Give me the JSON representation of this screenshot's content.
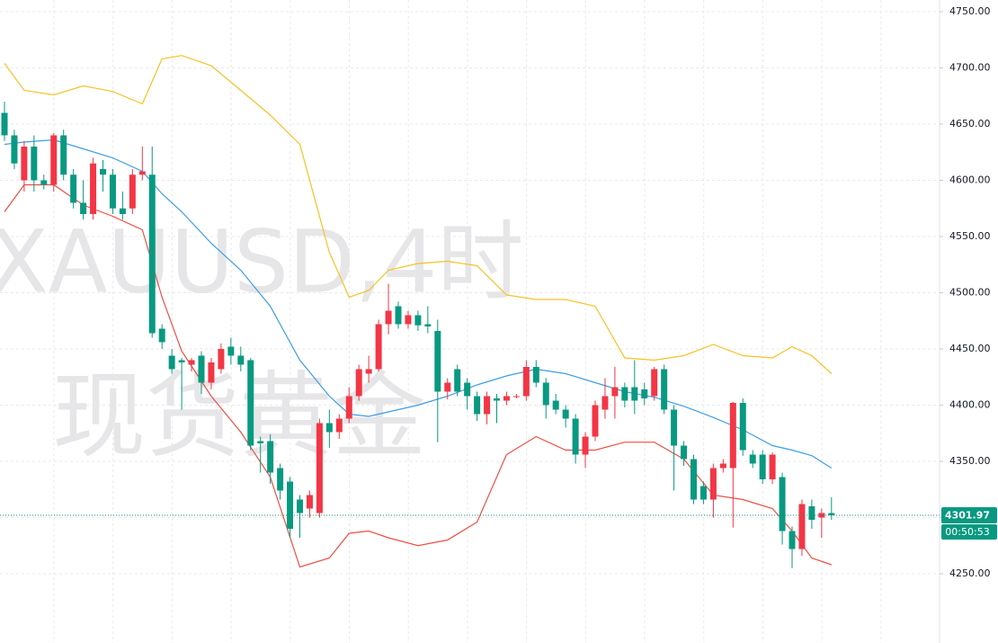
{
  "chart_data": {
    "type": "candlestick",
    "symbol_title": "XAUUSD,4时",
    "symbol_name": "现货黄金",
    "up_color": "#f23645",
    "down_color": "#089981",
    "ylim": [
      4188.4,
      4760.4
    ],
    "yticks": [
      {
        "value": 4250,
        "label": "4250.00"
      },
      {
        "value": 4300,
        "label": "4300.00"
      },
      {
        "value": 4350,
        "label": "4350.00"
      },
      {
        "value": 4400,
        "label": "4400.00"
      },
      {
        "value": 4450,
        "label": "4450.00"
      },
      {
        "value": 4500,
        "label": "4500.00"
      },
      {
        "value": 4550,
        "label": "4550.00"
      },
      {
        "value": 4600,
        "label": "4600.00"
      },
      {
        "value": 4650,
        "label": "4650.00"
      },
      {
        "value": 4700,
        "label": "4700.00"
      },
      {
        "value": 4750,
        "label": "4750.00"
      }
    ],
    "grid": true,
    "open": [
      4660,
      4640,
      4600,
      4630,
      4600,
      4596,
      4640,
      4605,
      4580,
      4570,
      4610,
      4605,
      4575,
      4575,
      4605,
      4605,
      4468,
      4444,
      4440,
      4436,
      4444,
      4420,
      4432,
      4452,
      4444,
      4440,
      4368,
      4368,
      4344,
      4332,
      4316,
      4308,
      4304,
      4384,
      4376,
      4388,
      4408,
      4428,
      4432,
      4472,
      4488,
      4472,
      4480,
      4472,
      4466,
      4412,
      4432,
      4420,
      4408,
      4392,
      4406,
      4404,
      4408,
      4408,
      4434,
      4420,
      4404,
      4396,
      4388,
      4356,
      4372,
      4396,
      4408,
      4416,
      4416,
      4414,
      4408,
      4432,
      4396,
      4364,
      4352,
      4328,
      4316,
      4344,
      4344,
      4402,
      4356,
      4356,
      4334,
      4336,
      4288,
      4272,
      4310,
      4300,
      4304
    ],
    "high": [
      4670,
      4645,
      4635,
      4640,
      4605,
      4642,
      4645,
      4610,
      4600,
      4620,
      4618,
      4610,
      4590,
      4610,
      4630,
      4630,
      4472,
      4450,
      4442,
      4442,
      4448,
      4442,
      4455,
      4460,
      4452,
      4442,
      4372,
      4374,
      4348,
      4336,
      4320,
      4324,
      4388,
      4396,
      4392,
      4416,
      4436,
      4444,
      4476,
      4508,
      4492,
      4484,
      4484,
      4488,
      4476,
      4424,
      4436,
      4424,
      4412,
      4412,
      4410,
      4412,
      4410,
      4440,
      4440,
      4424,
      4410,
      4400,
      4392,
      4376,
      4404,
      4424,
      4434,
      4420,
      4440,
      4420,
      4434,
      4436,
      4400,
      4368,
      4356,
      4332,
      4348,
      4352,
      4403,
      4406,
      4360,
      4360,
      4358,
      4340,
      4292,
      4316,
      4316,
      4308,
      4318
    ],
    "low": [
      4635,
      4610,
      4590,
      4590,
      4592,
      4590,
      4600,
      4575,
      4565,
      4565,
      4590,
      4570,
      4565,
      4570,
      4600,
      4460,
      4450,
      4428,
      4396,
      4430,
      4410,
      4414,
      4428,
      4436,
      4430,
      4360,
      4340,
      4330,
      4316,
      4282,
      4282,
      4300,
      4300,
      4362,
      4370,
      4384,
      4404,
      4420,
      4430,
      4463,
      4468,
      4468,
      4466,
      4464,
      4367,
      4405,
      4408,
      4396,
      4386,
      4383,
      4384,
      4400,
      4406,
      4404,
      4416,
      4388,
      4392,
      4380,
      4348,
      4344,
      4368,
      4388,
      4388,
      4398,
      4392,
      4400,
      4404,
      4392,
      4324,
      4346,
      4312,
      4312,
      4300,
      4340,
      4291,
      4355,
      4344,
      4330,
      4330,
      4276,
      4255,
      4266,
      4290,
      4282,
      4298
    ],
    "close": [
      4640,
      4615,
      4630,
      4600,
      4596,
      4640,
      4605,
      4580,
      4570,
      4615,
      4605,
      4575,
      4570,
      4605,
      4608,
      4464,
      4456,
      4432,
      4438,
      4440,
      4420,
      4438,
      4450,
      4444,
      4436,
      4364,
      4366,
      4340,
      4324,
      4290,
      4304,
      4320,
      4384,
      4376,
      4388,
      4408,
      4432,
      4432,
      4472,
      4484,
      4472,
      4480,
      4471,
      4470,
      4412,
      4420,
      4412,
      4408,
      4392,
      4408,
      4404,
      4408,
      4408,
      4434,
      4420,
      4400,
      4396,
      4388,
      4356,
      4372,
      4400,
      4408,
      4416,
      4404,
      4404,
      4406,
      4432,
      4396,
      4364,
      4352,
      4316,
      4316,
      4344,
      4348,
      4402,
      4360,
      4348,
      4334,
      4356,
      4288,
      4272,
      4312,
      4298,
      4304,
      4301.97
    ],
    "bands": {
      "x": [
        0,
        2,
        5,
        8,
        11,
        14,
        16,
        18,
        21,
        24,
        27,
        30,
        33,
        35,
        37,
        39,
        42,
        45,
        48,
        51,
        54,
        57,
        60,
        63,
        66,
        69,
        72,
        75,
        78,
        80,
        82,
        84
      ],
      "series": [
        {
          "color": "#f7c125",
          "values": [
            4704,
            4680,
            4676,
            4684,
            4679,
            4668,
            4708,
            4711,
            4702,
            4680,
            4658,
            4632,
            4536,
            4496,
            4502,
            4520,
            4526,
            4528,
            4524,
            4498,
            4494,
            4494,
            4488,
            4442,
            4440,
            4444,
            4454,
            4444,
            4442,
            4452,
            4444,
            4428
          ]
        },
        {
          "color": "#3d9ee6",
          "values": [
            4632,
            4634,
            4636,
            4628,
            4620,
            4608,
            4588,
            4572,
            4544,
            4520,
            4488,
            4440,
            4408,
            4392,
            4390,
            4394,
            4400,
            4408,
            4418,
            4426,
            4432,
            4428,
            4420,
            4412,
            4407,
            4399,
            4389,
            4378,
            4364,
            4360,
            4355,
            4344
          ]
        },
        {
          "color": "#ef4e44",
          "values": [
            4572,
            4596,
            4596,
            4578,
            4568,
            4556,
            4496,
            4448,
            4408,
            4376,
            4336,
            4256,
            4264,
            4286,
            4288,
            4282,
            4275,
            4280,
            4296,
            4356,
            4372,
            4360,
            4360,
            4367,
            4367,
            4352,
            4320,
            4316,
            4308,
            4288,
            4264,
            4258
          ]
        }
      ]
    },
    "countdown": "00:50:53"
  }
}
